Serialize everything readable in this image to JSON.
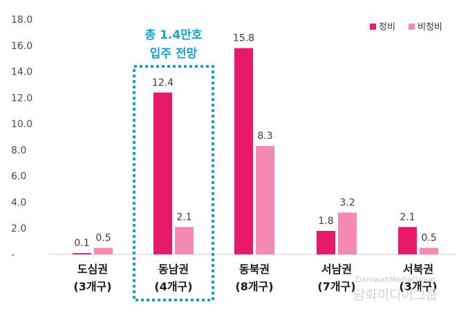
{
  "chart_data": {
    "type": "bar",
    "title": "",
    "xlabel": "",
    "ylabel": "",
    "ylim": [
      0,
      18
    ],
    "yticks": [
      "-",
      "2.0",
      "4.0",
      "6.0",
      "8.0",
      "10.0",
      "12.0",
      "14.0",
      "16.0",
      "18.0"
    ],
    "categories": [
      {
        "name": "도심권",
        "sub": "(3개구)"
      },
      {
        "name": "동남권",
        "sub": "(4개구)"
      },
      {
        "name": "동북권",
        "sub": "(8개구)"
      },
      {
        "name": "서남권",
        "sub": "(7개구)"
      },
      {
        "name": "서북권",
        "sub": "(3개구)"
      }
    ],
    "series": [
      {
        "name": "정비",
        "color": "#e8196a",
        "values": [
          0.1,
          12.4,
          15.8,
          1.8,
          2.1
        ],
        "labels": [
          "0.1",
          "12.4",
          "15.8",
          "1.8",
          "2.1"
        ]
      },
      {
        "name": "비정비",
        "color": "#f689b4",
        "values": [
          0.5,
          2.1,
          8.3,
          3.2,
          0.5
        ],
        "labels": [
          "0.5",
          "2.1",
          "8.3",
          "3.2",
          "0.5"
        ]
      }
    ],
    "grid": false,
    "legend": "top-right",
    "annotation": {
      "category_index": 1,
      "line1": "총 1.4만호",
      "line2": "입주 전망",
      "color": "#1a9fc7"
    }
  },
  "watermark": {
    "latin": "DamwahMediaGroup",
    "korean": "담화미디어그룹"
  }
}
